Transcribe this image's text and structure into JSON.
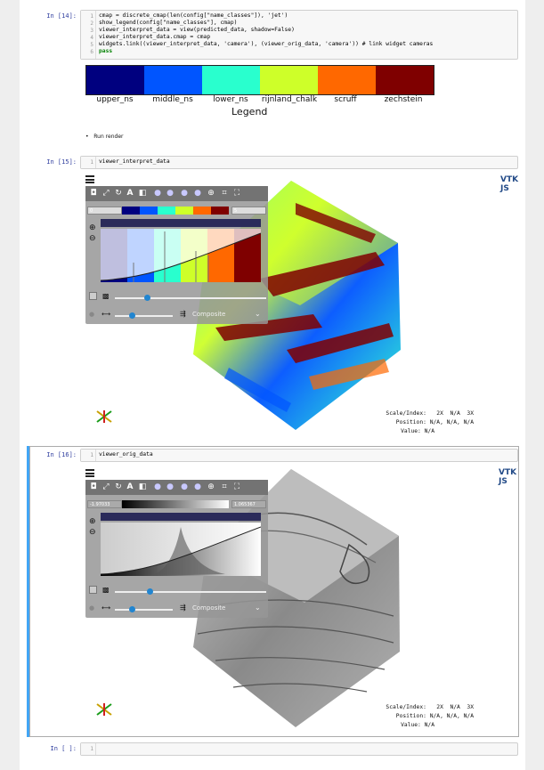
{
  "cells": [
    {
      "prompt": "In [14]:",
      "lines": [
        "cmap = discrete_cmap(len(config[\"name_classes\"]), 'jet')",
        "show_legend(config[\"name_classes\"], cmap)",
        "viewer_interpret_data = view(predicted_data, shadow=False)",
        "viewer_interpret_data.cmap = cmap",
        "widgets.link((viewer_interpret_data, 'camera'), (viewer_orig_data, 'camera')) # link widget cameras",
        "pass"
      ],
      "line_numbers": [
        "1",
        "2",
        "3",
        "4",
        "5",
        "6"
      ]
    },
    {
      "prompt": "In [15]:",
      "lines": [
        "viewer_interpret_data"
      ],
      "line_numbers": [
        "1"
      ]
    },
    {
      "prompt": "In [16]:",
      "lines": [
        "viewer_orig_data"
      ],
      "line_numbers": [
        "1"
      ]
    },
    {
      "prompt": "In [ ]:",
      "lines": [
        ""
      ],
      "line_numbers": [
        "1"
      ]
    }
  ],
  "legend": {
    "title": "Legend",
    "classes": [
      "upper_ns",
      "middle_ns",
      "lower_ns",
      "rijnland_chalk",
      "scruff",
      "zechstein"
    ],
    "colors": [
      "#00007f",
      "#0055ff",
      "#29ffce",
      "#ceff29",
      "#ff6800",
      "#7f0000"
    ]
  },
  "markdown": {
    "bullet": "Run render"
  },
  "viewer1": {
    "range_min": "0",
    "range_max": "5",
    "composite": "Composite",
    "scale_label": "Scale/Index:",
    "scale_value": "2X  N/A  3X",
    "position_label": "Position:",
    "position_value": "N/A, N/A, N/A",
    "value_label": "Value:",
    "value_value": "N/A",
    "logo": "VTK JS"
  },
  "viewer2": {
    "range_min": "-1.97033",
    "range_max": "1.065367",
    "composite": "Composite",
    "scale_label": "Scale/Index:",
    "scale_value": "2X  N/A  3X",
    "position_label": "Position:",
    "position_value": "N/A, N/A, N/A",
    "value_label": "Value:",
    "value_value": "N/A",
    "logo": "VTK JS"
  },
  "toolbar_icons": [
    "camera-icon",
    "expand-icon",
    "rotate-icon",
    "annotation-icon",
    "shadow-icon",
    "sphere-icon",
    "sphere-icon",
    "sphere-icon",
    "sphere-icon",
    "crosshair-icon",
    "crop-icon",
    "fullscreen-icon"
  ]
}
